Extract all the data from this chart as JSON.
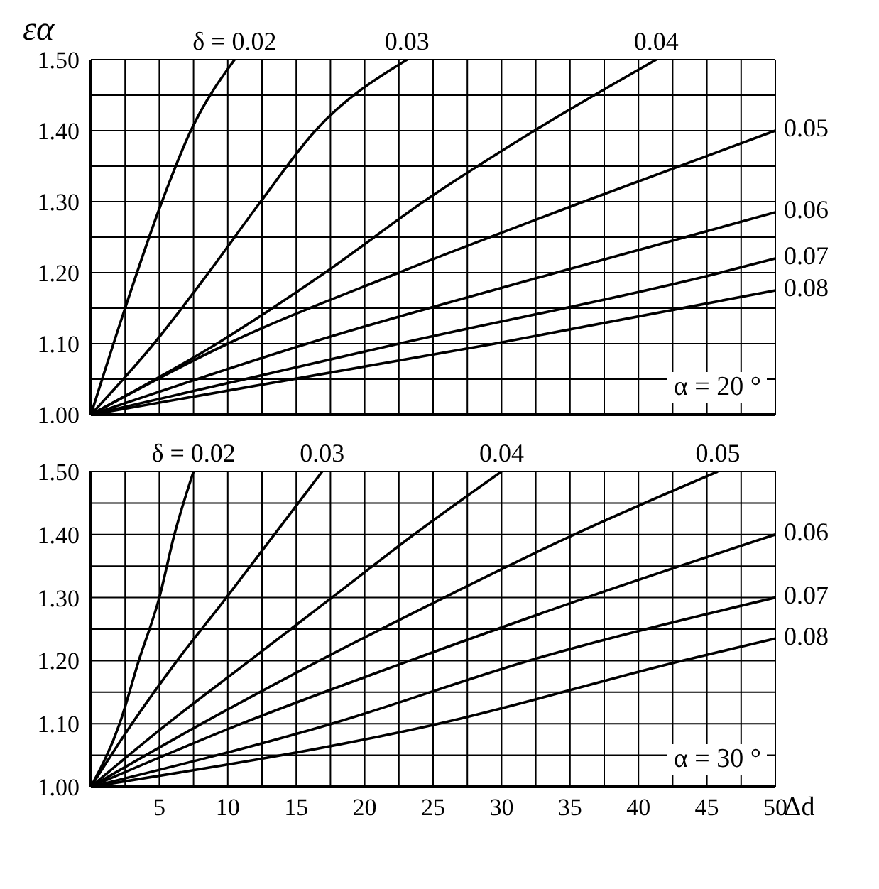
{
  "chart_data": [
    {
      "type": "line",
      "ylabel": "εα",
      "annotations": [
        "α = 20 °"
      ],
      "grid": true,
      "tick_labels": "y",
      "xlim": [
        0,
        50
      ],
      "ylim": [
        1.0,
        1.5
      ],
      "xticks": [
        {
          "value": 0,
          "label": null
        },
        {
          "value": 2.5,
          "label": null
        },
        5,
        {
          "value": 7.5,
          "label": null
        },
        10,
        {
          "value": 12.5,
          "label": null
        },
        15,
        {
          "value": 17.5,
          "label": null
        },
        20,
        {
          "value": 22.5,
          "label": null
        },
        25,
        {
          "value": 27.5,
          "label": null
        },
        30,
        {
          "value": 32.5,
          "label": null
        },
        35,
        {
          "value": 37.5,
          "label": null
        },
        40,
        {
          "value": 42.5,
          "label": null
        },
        45,
        {
          "value": 47.5,
          "label": null
        },
        50
      ],
      "yticks": [
        {
          "value": 1.0,
          "label": "1.00"
        },
        {
          "value": 1.05,
          "label": null
        },
        {
          "value": 1.1,
          "label": "1.10"
        },
        {
          "value": 1.15,
          "label": null
        },
        {
          "value": 1.2,
          "label": "1.20"
        },
        {
          "value": 1.25,
          "label": null
        },
        {
          "value": 1.3,
          "label": "1.30"
        },
        {
          "value": 1.35,
          "label": null
        },
        {
          "value": 1.4,
          "label": "1.40"
        },
        {
          "value": 1.45,
          "label": null
        },
        {
          "value": 1.5,
          "label": "1.50"
        }
      ],
      "series": [
        {
          "name": "δ = 0.02",
          "color": "#000000",
          "x": [
            0,
            2.5,
            5,
            7.3,
            10.5
          ],
          "values": [
            1.0,
            1.15,
            1.29,
            1.4,
            1.5
          ]
        },
        {
          "name": "0.03",
          "color": "#000000",
          "x": [
            0,
            4.6,
            8.6,
            12.4,
            16.4,
            23.1
          ],
          "values": [
            1.0,
            1.1,
            1.2,
            1.3,
            1.4,
            1.5
          ]
        },
        {
          "name": "0.04",
          "color": "#000000",
          "x": [
            0,
            9.2,
            17.1,
            24.3,
            32.4,
            41.3
          ],
          "values": [
            1.0,
            1.1,
            1.2,
            1.3,
            1.4,
            1.5
          ]
        },
        {
          "name": "0.05",
          "color": "#000000",
          "x": [
            0,
            10,
            22.5,
            36,
            50
          ],
          "values": [
            1.0,
            1.1,
            1.2,
            1.3,
            1.4
          ]
        },
        {
          "name": "0.06",
          "color": "#000000",
          "x": [
            0,
            15.8,
            34,
            50
          ],
          "values": [
            1.0,
            1.1,
            1.2,
            1.285
          ]
        },
        {
          "name": "0.07",
          "color": "#000000",
          "x": [
            0,
            22.5,
            46,
            50
          ],
          "values": [
            1.0,
            1.1,
            1.2,
            1.22
          ]
        },
        {
          "name": "0.08",
          "color": "#000000",
          "x": [
            0,
            29.5,
            50
          ],
          "values": [
            1.0,
            1.1,
            1.175
          ]
        }
      ]
    },
    {
      "type": "line",
      "xlabel": "Δd",
      "annotations": [
        "α = 30 °"
      ],
      "grid": true,
      "xlim": [
        0,
        50
      ],
      "ylim": [
        1.0,
        1.5
      ],
      "xticks": [
        {
          "value": 0,
          "label": null
        },
        {
          "value": 2.5,
          "label": null
        },
        5,
        {
          "value": 7.5,
          "label": null
        },
        10,
        {
          "value": 12.5,
          "label": null
        },
        15,
        {
          "value": 17.5,
          "label": null
        },
        20,
        {
          "value": 22.5,
          "label": null
        },
        25,
        {
          "value": 27.5,
          "label": null
        },
        30,
        {
          "value": 32.5,
          "label": null
        },
        35,
        {
          "value": 37.5,
          "label": null
        },
        40,
        {
          "value": 42.5,
          "label": null
        },
        45,
        {
          "value": 47.5,
          "label": null
        },
        50
      ],
      "yticks": [
        {
          "value": 1.0,
          "label": "1.00"
        },
        {
          "value": 1.05,
          "label": null
        },
        {
          "value": 1.1,
          "label": "1.10"
        },
        {
          "value": 1.15,
          "label": null
        },
        {
          "value": 1.2,
          "label": "1.20"
        },
        {
          "value": 1.25,
          "label": null
        },
        {
          "value": 1.3,
          "label": "1.30"
        },
        {
          "value": 1.35,
          "label": null
        },
        {
          "value": 1.4,
          "label": "1.40"
        },
        {
          "value": 1.45,
          "label": null
        },
        {
          "value": 1.5,
          "label": "1.50"
        }
      ],
      "series": [
        {
          "name": "δ = 0.02",
          "color": "#000000",
          "x": [
            0,
            2.1,
            3.5,
            5,
            6.1,
            7.5
          ],
          "values": [
            1.0,
            1.1,
            1.2,
            1.3,
            1.4,
            1.5
          ]
        },
        {
          "name": "0.03",
          "color": "#000000",
          "x": [
            0,
            3,
            6.3,
            9.9,
            13.4,
            16.9
          ],
          "values": [
            1.0,
            1.1,
            1.2,
            1.3,
            1.4,
            1.5
          ]
        },
        {
          "name": "0.04",
          "color": "#000000",
          "x": [
            0,
            5.6,
            11.6,
            17.6,
            23.6,
            30
          ],
          "values": [
            1.0,
            1.1,
            1.2,
            1.3,
            1.4,
            1.5
          ]
        },
        {
          "name": "0.05",
          "color": "#000000",
          "x": [
            0,
            8.1,
            16.7,
            25.8,
            35.3,
            45.8
          ],
          "values": [
            1.0,
            1.1,
            1.2,
            1.3,
            1.4,
            1.5
          ]
        },
        {
          "name": "0.06",
          "color": "#000000",
          "x": [
            0,
            11,
            23.3,
            36.2,
            50
          ],
          "values": [
            1.0,
            1.1,
            1.2,
            1.3,
            1.4
          ]
        },
        {
          "name": "0.07",
          "color": "#000000",
          "x": [
            0,
            17.6,
            32,
            50
          ],
          "values": [
            1.0,
            1.1,
            1.2,
            1.3
          ]
        },
        {
          "name": "0.08",
          "color": "#000000",
          "x": [
            0,
            25.4,
            43.2,
            50
          ],
          "values": [
            1.0,
            1.1,
            1.2,
            1.235
          ]
        }
      ]
    }
  ]
}
